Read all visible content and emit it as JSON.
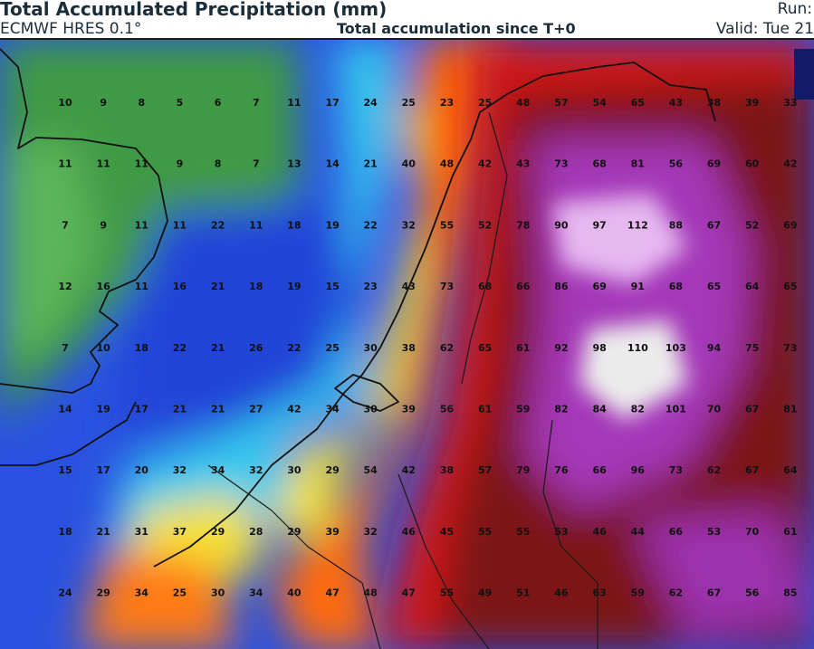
{
  "header": {
    "title": "Total Accumulated Precipitation (mm)",
    "run_label": "Run:",
    "model": "ECMWF HRES 0.1°",
    "accumulation": "Total accumulation since T+0",
    "valid": "Valid: Tue 21"
  },
  "map": {
    "legend_colors": {
      "low_green": "#3f9a45",
      "blue": "#2a52e0",
      "cyan": "#34c9ee",
      "yellow": "#f4e234",
      "orange": "#ff6a10",
      "red": "#d41616",
      "dark_red": "#7c1212",
      "magenta": "#a437b8",
      "white_peak": "#ececec"
    },
    "grid_values": [
      [
        "10",
        "9",
        "8",
        "5",
        "6",
        "7",
        "11",
        "17",
        "24",
        "25",
        "23",
        "25",
        "48",
        "57",
        "54",
        "65",
        "43",
        "38",
        "39",
        "33"
      ],
      [
        "11",
        "11",
        "11",
        "9",
        "8",
        "7",
        "13",
        "14",
        "21",
        "40",
        "48",
        "42",
        "43",
        "73",
        "68",
        "81",
        "56",
        "69",
        "60",
        "42"
      ],
      [
        "7",
        "9",
        "11",
        "11",
        "22",
        "11",
        "18",
        "19",
        "22",
        "32",
        "55",
        "52",
        "78",
        "90",
        "97",
        "112",
        "88",
        "67",
        "52",
        "69"
      ],
      [
        "12",
        "16",
        "11",
        "16",
        "21",
        "18",
        "19",
        "15",
        "23",
        "43",
        "73",
        "68",
        "66",
        "86",
        "69",
        "91",
        "68",
        "65",
        "64",
        "65"
      ],
      [
        "7",
        "10",
        "18",
        "22",
        "21",
        "26",
        "22",
        "25",
        "30",
        "38",
        "62",
        "65",
        "61",
        "92",
        "98",
        "110",
        "103",
        "94",
        "75",
        "73"
      ],
      [
        "14",
        "19",
        "17",
        "21",
        "21",
        "27",
        "42",
        "34",
        "30",
        "39",
        "56",
        "61",
        "59",
        "82",
        "84",
        "82",
        "101",
        "70",
        "67",
        "81"
      ],
      [
        "15",
        "17",
        "20",
        "32",
        "34",
        "32",
        "30",
        "29",
        "54",
        "42",
        "38",
        "57",
        "79",
        "76",
        "66",
        "96",
        "73",
        "62",
        "67",
        "64"
      ],
      [
        "18",
        "21",
        "31",
        "37",
        "29",
        "28",
        "29",
        "39",
        "32",
        "46",
        "45",
        "55",
        "55",
        "53",
        "46",
        "44",
        "66",
        "53",
        "70",
        "61"
      ],
      [
        "24",
        "29",
        "34",
        "25",
        "30",
        "34",
        "40",
        "47",
        "48",
        "47",
        "55",
        "49",
        "51",
        "46",
        "63",
        "59",
        "62",
        "67",
        "56",
        "85"
      ]
    ]
  }
}
